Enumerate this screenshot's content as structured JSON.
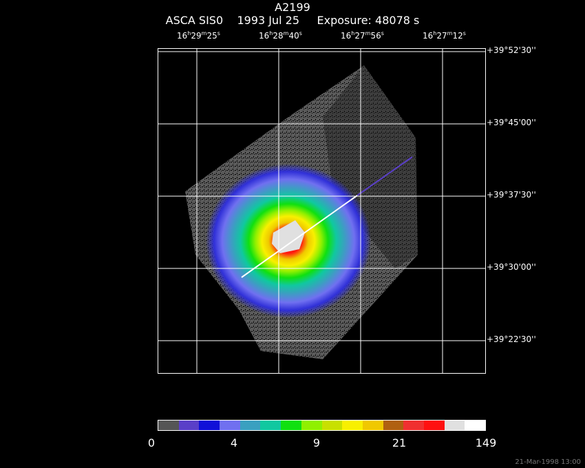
{
  "header": {
    "object": "A2199",
    "instrument": "ASCA SIS0",
    "date": "1993 Jul 25",
    "exposure": "Exposure: 48078 s"
  },
  "ra_ticks": [
    {
      "h": "16",
      "m": "29",
      "s": "25"
    },
    {
      "h": "16",
      "m": "28",
      "s": "40"
    },
    {
      "h": "16",
      "m": "27",
      "s": "56"
    },
    {
      "h": "16",
      "m": "27",
      "s": "12"
    }
  ],
  "dec_ticks": [
    "+39°52'30''",
    "+39°45'00''",
    "+39°37'30''",
    "+39°30'00''",
    "+39°22'30''"
  ],
  "colorbar": {
    "colors": [
      "#555555",
      "#5a3fc8",
      "#1010d8",
      "#7070f0",
      "#3aa0c0",
      "#10c8a0",
      "#10e010",
      "#90f000",
      "#c8e000",
      "#f8f000",
      "#f0c800",
      "#b06010",
      "#f03030",
      "#ff1010",
      "#e0e0e0",
      "#ffffff"
    ],
    "labels": [
      "0",
      "4",
      "9",
      "21",
      "149"
    ]
  },
  "timestamp": "21-Mar-1998 13:00"
}
